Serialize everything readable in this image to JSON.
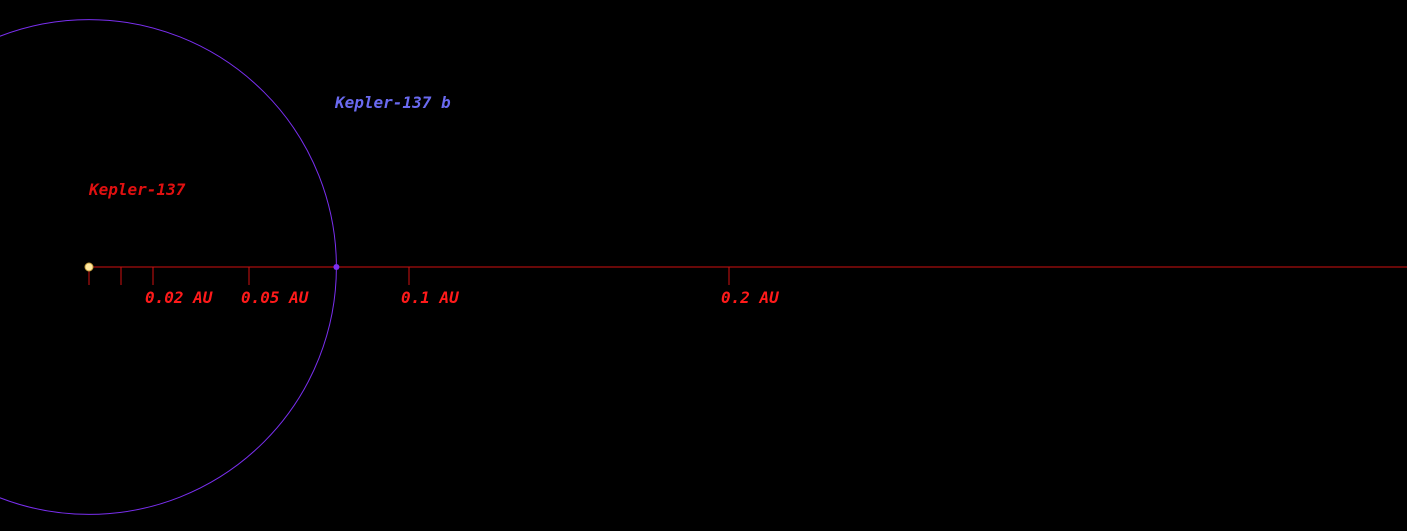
{
  "colors": {
    "background": "#000000",
    "axis": "#d01010",
    "scale_label": "#ff1a1a",
    "star": "#ffe8a0",
    "star_outline": "#c8a040",
    "orbit": "#7a2ff0",
    "planet": "#7a2ff0",
    "star_label": "#e01010",
    "planet_label": "#6a6af0"
  },
  "star": {
    "name": "Kepler-137"
  },
  "planet": {
    "name": "Kepler-137 b",
    "semi_major_axis_au": 0.0773
  },
  "scale": {
    "ticks_au": [
      0.01,
      0.02,
      0.05,
      0.1,
      0.2
    ],
    "labels": [
      {
        "text": "0.02 AU",
        "au": 0.02
      },
      {
        "text": "0.05 AU",
        "au": 0.05
      },
      {
        "text": "0.1 AU",
        "au": 0.1
      },
      {
        "text": "0.2 AU",
        "au": 0.2
      }
    ]
  }
}
